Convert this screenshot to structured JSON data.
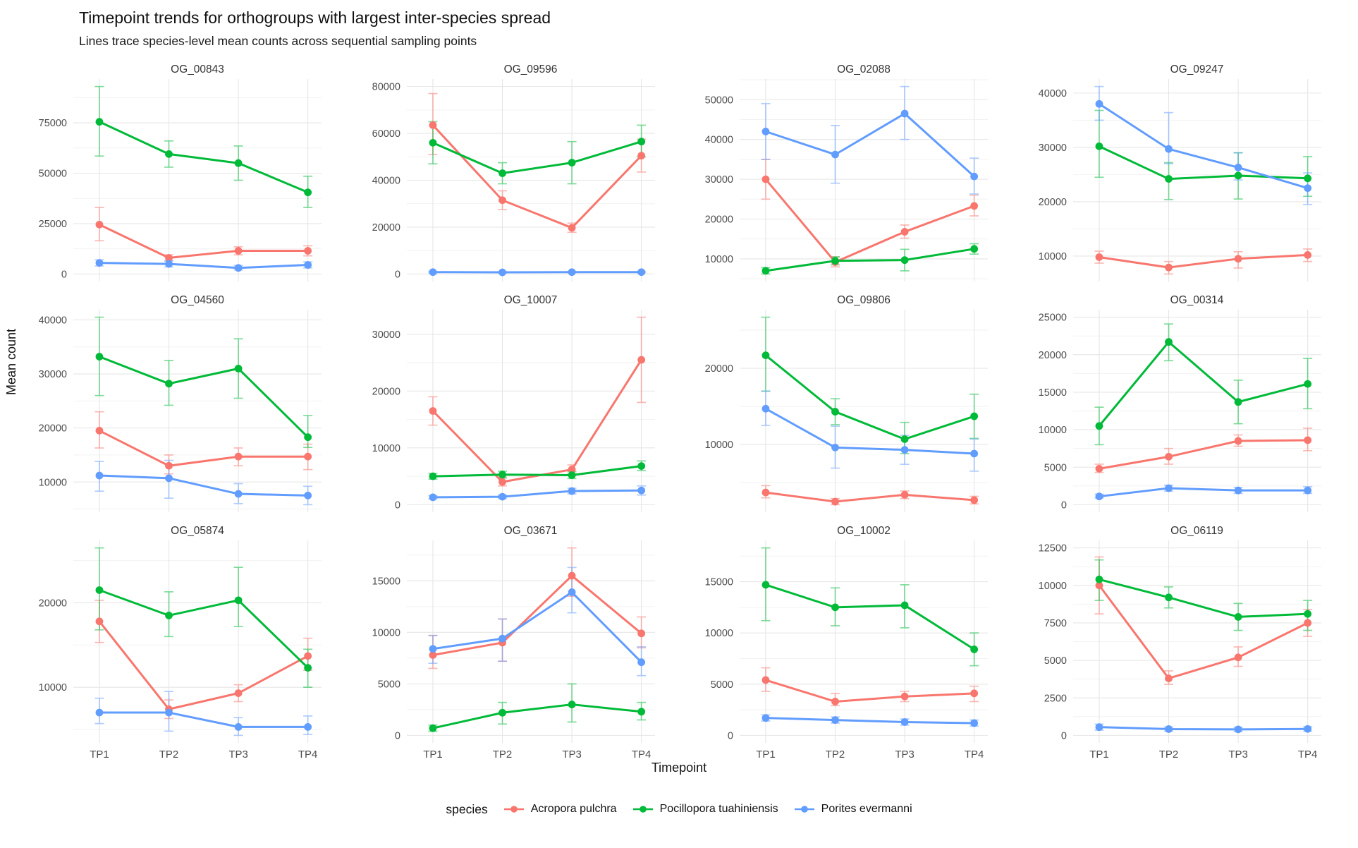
{
  "title": "Timepoint trends for orthogroups with largest inter-species spread",
  "subtitle": "Lines trace species-level mean counts across sequential sampling points",
  "axes": {
    "x_label": "Timepoint",
    "y_label": "Mean count",
    "x_ticks": [
      "TP1",
      "TP2",
      "TP3",
      "TP4"
    ]
  },
  "legend": {
    "label": "species",
    "entries": [
      {
        "name": "Acropora pulchra",
        "color": "#F8766D"
      },
      {
        "name": "Pocillopora tuahiniensis",
        "color": "#00BA38"
      },
      {
        "name": "Porites evermanni",
        "color": "#619CFF"
      }
    ]
  },
  "style": {
    "grid_major": "#e6e6e6",
    "grid_minor": "#f2f2f2",
    "tick_text": "#4d4d4d"
  },
  "chart_data": {
    "type": "line",
    "x": [
      "TP1",
      "TP2",
      "TP3",
      "TP4"
    ],
    "facets": [
      {
        "title": "OG_00843",
        "yticks": [
          0,
          25000,
          50000,
          75000
        ],
        "series": [
          {
            "name": "Acropora pulchra",
            "mean": [
              24500,
              8000,
              11500,
              11500
            ],
            "lo": [
              16500,
              6500,
              9500,
              9000
            ],
            "hi": [
              33000,
              9500,
              13500,
              14000
            ]
          },
          {
            "name": "Pocillopora tuahiniensis",
            "mean": [
              75500,
              59500,
              55000,
              40500
            ],
            "lo": [
              58500,
              53000,
              46500,
              33000
            ],
            "hi": [
              93000,
              66000,
              63500,
              48500
            ]
          },
          {
            "name": "Porites evermanni",
            "mean": [
              5500,
              5000,
              3000,
              4500
            ],
            "lo": [
              4000,
              3500,
              2000,
              3000
            ],
            "hi": [
              7000,
              6500,
              4200,
              6000
            ]
          }
        ]
      },
      {
        "title": "OG_09596",
        "yticks": [
          0,
          20000,
          40000,
          60000,
          80000
        ],
        "series": [
          {
            "name": "Acropora pulchra",
            "mean": [
              63500,
              31500,
              19700,
              50500
            ],
            "lo": [
              51000,
              27500,
              17800,
              43500
            ],
            "hi": [
              77000,
              35500,
              21700,
              57500
            ]
          },
          {
            "name": "Pocillopora tuahiniensis",
            "mean": [
              56000,
              43000,
              47500,
              56500
            ],
            "lo": [
              47000,
              38500,
              38500,
              50000
            ],
            "hi": [
              65000,
              47500,
              56500,
              63500
            ]
          },
          {
            "name": "Porites evermanni",
            "mean": [
              800,
              700,
              800,
              800
            ],
            "lo": [
              500,
              450,
              500,
              500
            ],
            "hi": [
              1100,
              1000,
              1100,
              1100
            ]
          }
        ]
      },
      {
        "title": "OG_02088",
        "yticks": [
          10000,
          20000,
          30000,
          40000,
          50000
        ],
        "series": [
          {
            "name": "Acropora pulchra",
            "mean": [
              30000,
              9200,
              16800,
              23300
            ],
            "lo": [
              25000,
              8000,
              15200,
              20800
            ],
            "hi": [
              35000,
              10500,
              18500,
              26000
            ]
          },
          {
            "name": "Pocillopora tuahiniensis",
            "mean": [
              7000,
              9500,
              9700,
              12500
            ],
            "lo": [
              6200,
              8500,
              7000,
              11200
            ],
            "hi": [
              7800,
              10500,
              12400,
              13800
            ]
          },
          {
            "name": "Porites evermanni",
            "mean": [
              42000,
              36200,
              46500,
              30700
            ],
            "lo": [
              35000,
              29000,
              40000,
              26300
            ],
            "hi": [
              49000,
              43500,
              53300,
              35300
            ]
          }
        ]
      },
      {
        "title": "OG_09247",
        "yticks": [
          10000,
          20000,
          30000,
          40000
        ],
        "series": [
          {
            "name": "Acropora pulchra",
            "mean": [
              9800,
              7900,
              9500,
              10200
            ],
            "lo": [
              8700,
              6700,
              7800,
              9000
            ],
            "hi": [
              10900,
              9000,
              10800,
              11300
            ]
          },
          {
            "name": "Pocillopora tuahiniensis",
            "mean": [
              30200,
              24200,
              24800,
              24300
            ],
            "lo": [
              24500,
              20400,
              20500,
              21000
            ],
            "hi": [
              36800,
              27200,
              29000,
              28300
            ]
          },
          {
            "name": "Porites evermanni",
            "mean": [
              38000,
              29700,
              26300,
              22500
            ],
            "lo": [
              35000,
              27000,
              24000,
              19500
            ],
            "hi": [
              41200,
              36400,
              29000,
              25300
            ]
          }
        ]
      },
      {
        "title": "OG_04560",
        "yticks": [
          10000,
          20000,
          30000,
          40000
        ],
        "series": [
          {
            "name": "Acropora pulchra",
            "mean": [
              19500,
              13000,
              14700,
              14700
            ],
            "lo": [
              16300,
              11500,
              13000,
              12300
            ],
            "hi": [
              23000,
              15000,
              16300,
              17000
            ]
          },
          {
            "name": "Pocillopora tuahiniensis",
            "mean": [
              33200,
              28200,
              31000,
              18300
            ],
            "lo": [
              26000,
              24200,
              25500,
              16400
            ],
            "hi": [
              40500,
              32500,
              36500,
              22300
            ]
          },
          {
            "name": "Porites evermanni",
            "mean": [
              11200,
              10700,
              7800,
              7500
            ],
            "lo": [
              8300,
              7000,
              6000,
              5800
            ],
            "hi": [
              13800,
              14000,
              9700,
              9200
            ]
          }
        ]
      },
      {
        "title": "OG_10007",
        "yticks": [
          0,
          10000,
          20000,
          30000
        ],
        "series": [
          {
            "name": "Acropora pulchra",
            "mean": [
              16500,
              4000,
              6200,
              25500
            ],
            "lo": [
              14000,
              3300,
              5400,
              18000
            ],
            "hi": [
              19000,
              4800,
              7000,
              33000
            ]
          },
          {
            "name": "Pocillopora tuahiniensis",
            "mean": [
              5000,
              5300,
              5200,
              6800
            ],
            "lo": [
              4500,
              4700,
              4600,
              6000
            ],
            "hi": [
              5500,
              5900,
              5800,
              7700
            ]
          },
          {
            "name": "Porites evermanni",
            "mean": [
              1300,
              1400,
              2400,
              2500
            ],
            "lo": [
              1000,
              1100,
              1900,
              1700
            ],
            "hi": [
              1600,
              1700,
              2900,
              3300
            ]
          }
        ]
      },
      {
        "title": "OG_09806",
        "yticks": [
          10000,
          20000
        ],
        "series": [
          {
            "name": "Acropora pulchra",
            "mean": [
              3700,
              2500,
              3400,
              2700
            ],
            "lo": [
              3000,
              2100,
              2900,
              2200
            ],
            "hi": [
              4600,
              2900,
              3900,
              3200
            ]
          },
          {
            "name": "Pocillopora tuahiniensis",
            "mean": [
              21700,
              14300,
              10700,
              13700
            ],
            "lo": [
              17000,
              12600,
              8800,
              10800
            ],
            "hi": [
              26700,
              16000,
              12900,
              16600
            ]
          },
          {
            "name": "Porites evermanni",
            "mean": [
              14700,
              9600,
              9300,
              8800
            ],
            "lo": [
              12500,
              6900,
              7400,
              6500
            ],
            "hi": [
              17000,
              12400,
              11200,
              10700
            ]
          }
        ]
      },
      {
        "title": "OG_00314",
        "yticks": [
          0,
          5000,
          10000,
          15000,
          20000,
          25000
        ],
        "series": [
          {
            "name": "Acropora pulchra",
            "mean": [
              4800,
              6400,
              8500,
              8600
            ],
            "lo": [
              4300,
              5400,
              7800,
              7200
            ],
            "hi": [
              5400,
              7500,
              9300,
              10200
            ]
          },
          {
            "name": "Pocillopora tuahiniensis",
            "mean": [
              10500,
              21700,
              13700,
              16100
            ],
            "lo": [
              8000,
              19200,
              10800,
              12800
            ],
            "hi": [
              13000,
              24100,
              16600,
              19500
            ]
          },
          {
            "name": "Porites evermanni",
            "mean": [
              1100,
              2200,
              1900,
              1900
            ],
            "lo": [
              900,
              1800,
              1500,
              1500
            ],
            "hi": [
              1400,
              2600,
              2300,
              2400
            ]
          }
        ]
      },
      {
        "title": "OG_05874",
        "yticks": [
          10000,
          20000
        ],
        "series": [
          {
            "name": "Acropora pulchra",
            "mean": [
              17800,
              7400,
              9300,
              13700
            ],
            "lo": [
              15300,
              6300,
              8300,
              12000
            ],
            "hi": [
              20300,
              8500,
              10300,
              15800
            ]
          },
          {
            "name": "Pocillopora tuahiniensis",
            "mean": [
              21500,
              18500,
              20300,
              12300
            ],
            "lo": [
              16800,
              16000,
              17200,
              10000
            ],
            "hi": [
              26500,
              21300,
              24200,
              14500
            ]
          },
          {
            "name": "Porites evermanni",
            "mean": [
              7000,
              7000,
              5300,
              5300
            ],
            "lo": [
              5700,
              4800,
              4300,
              4400
            ],
            "hi": [
              8700,
              9500,
              6400,
              6600
            ]
          }
        ]
      },
      {
        "title": "OG_03671",
        "yticks": [
          0,
          5000,
          10000,
          15000
        ],
        "series": [
          {
            "name": "Acropora pulchra",
            "mean": [
              7800,
              9000,
              15500,
              9900
            ],
            "lo": [
              6500,
              7200,
              13500,
              8500
            ],
            "hi": [
              9700,
              11300,
              18200,
              11500
            ]
          },
          {
            "name": "Pocillopora tuahiniensis",
            "mean": [
              700,
              2200,
              3000,
              2300
            ],
            "lo": [
              400,
              1100,
              1300,
              1500
            ],
            "hi": [
              1000,
              3200,
              5000,
              3200
            ]
          },
          {
            "name": "Porites evermanni",
            "mean": [
              8400,
              9400,
              13900,
              7100
            ],
            "lo": [
              7000,
              7200,
              11900,
              5800
            ],
            "hi": [
              9700,
              11300,
              16300,
              8600
            ]
          }
        ]
      },
      {
        "title": "OG_10002",
        "yticks": [
          0,
          5000,
          10000,
          15000
        ],
        "series": [
          {
            "name": "Acropora pulchra",
            "mean": [
              5400,
              3300,
              3800,
              4100
            ],
            "lo": [
              4300,
              2900,
              3300,
              3300
            ],
            "hi": [
              6600,
              4100,
              4300,
              4800
            ]
          },
          {
            "name": "Pocillopora tuahiniensis",
            "mean": [
              14700,
              12500,
              12700,
              8400
            ],
            "lo": [
              11200,
              10700,
              10500,
              6800
            ],
            "hi": [
              18300,
              14400,
              14700,
              10000
            ]
          },
          {
            "name": "Porites evermanni",
            "mean": [
              1700,
              1500,
              1300,
              1200
            ],
            "lo": [
              1400,
              1200,
              1000,
              900
            ],
            "hi": [
              2000,
              1800,
              1600,
              1500
            ]
          }
        ]
      },
      {
        "title": "OG_06119",
        "yticks": [
          0,
          2500,
          5000,
          7500,
          10000,
          12500
        ],
        "series": [
          {
            "name": "Acropora pulchra",
            "mean": [
              10000,
              3800,
              5200,
              7500
            ],
            "lo": [
              8100,
              3400,
              4600,
              6600
            ],
            "hi": [
              11900,
              4300,
              5900,
              8400
            ]
          },
          {
            "name": "Pocillopora tuahiniensis",
            "mean": [
              10400,
              9200,
              7900,
              8100
            ],
            "lo": [
              9000,
              8500,
              7000,
              7000
            ],
            "hi": [
              11700,
              9900,
              8800,
              9000
            ]
          },
          {
            "name": "Porites evermanni",
            "mean": [
              550,
              420,
              400,
              430
            ],
            "lo": [
              350,
              280,
              260,
              280
            ],
            "hi": [
              750,
              560,
              540,
              580
            ]
          }
        ]
      }
    ]
  }
}
